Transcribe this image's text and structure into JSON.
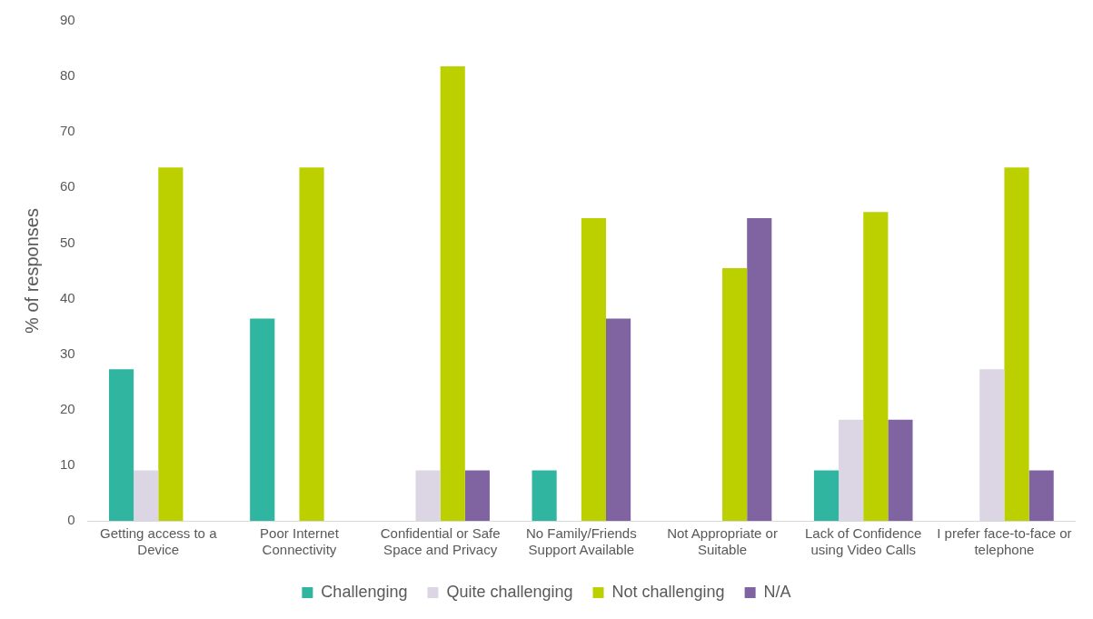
{
  "chart_data": {
    "type": "bar",
    "ylabel": "% of responses",
    "categories": [
      "Getting access to a Device",
      "Poor Internet Connectivity",
      "Confidential or Safe Space and Privacy",
      "No Family/Friends Support Available",
      "Not Appropriate or Suitable",
      "Lack of Confidence using Video Calls",
      "I prefer face-to-face or telephone"
    ],
    "series": [
      {
        "name": "Challenging",
        "color": "#2fb5a0",
        "values": [
          27.3,
          36.4,
          0,
          9.1,
          0,
          9.1,
          0
        ]
      },
      {
        "name": "Quite challenging",
        "color": "#dcd6e4",
        "values": [
          9.1,
          0,
          9.1,
          0,
          0,
          18.2,
          27.3
        ]
      },
      {
        "name": "Not challenging",
        "color": "#bcd000",
        "values": [
          63.6,
          63.6,
          81.8,
          54.5,
          45.5,
          55.6,
          63.6
        ]
      },
      {
        "name": "N/A",
        "color": "#8064a2",
        "values": [
          0,
          0,
          9.1,
          36.4,
          54.5,
          18.2,
          9.1
        ]
      }
    ],
    "ylim": [
      0,
      90
    ],
    "yticks": [
      0,
      10,
      20,
      30,
      40,
      50,
      60,
      70,
      80,
      90
    ],
    "grid": false,
    "legend": "bottom"
  }
}
